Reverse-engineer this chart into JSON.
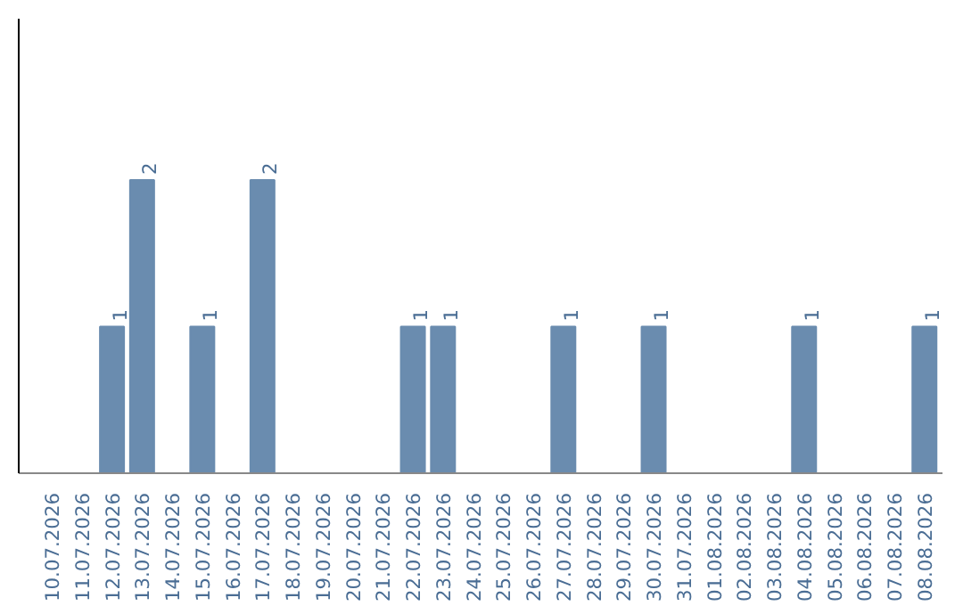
{
  "chart_data": {
    "type": "bar",
    "categories": [
      "10.07.2026",
      "11.07.2026",
      "12.07.2026",
      "13.07.2026",
      "14.07.2026",
      "15.07.2026",
      "16.07.2026",
      "17.07.2026",
      "18.07.2026",
      "19.07.2026",
      "20.07.2026",
      "21.07.2026",
      "22.07.2026",
      "23.07.2026",
      "24.07.2026",
      "25.07.2026",
      "26.07.2026",
      "27.07.2026",
      "28.07.2026",
      "29.07.2026",
      "30.07.2026",
      "31.07.2026",
      "01.08.2026",
      "02.08.2026",
      "03.08.2026",
      "04.08.2026",
      "05.08.2026",
      "06.08.2026",
      "07.08.2026",
      "08.08.2026"
    ],
    "values": [
      0,
      0,
      1,
      2,
      0,
      1,
      0,
      2,
      0,
      0,
      0,
      0,
      1,
      1,
      0,
      0,
      0,
      1,
      0,
      0,
      1,
      0,
      0,
      0,
      0,
      1,
      0,
      0,
      0,
      1
    ],
    "value_labels": [
      null,
      null,
      "1",
      "2",
      null,
      "1",
      null,
      "2",
      null,
      null,
      null,
      null,
      "1",
      "1",
      null,
      null,
      null,
      "1",
      null,
      null,
      "1",
      null,
      null,
      null,
      null,
      "1",
      null,
      null,
      null,
      "1"
    ],
    "color": "#6a8caf",
    "ylim": [
      0,
      3.1
    ],
    "tick_labels": "x",
    "grid": false
  }
}
